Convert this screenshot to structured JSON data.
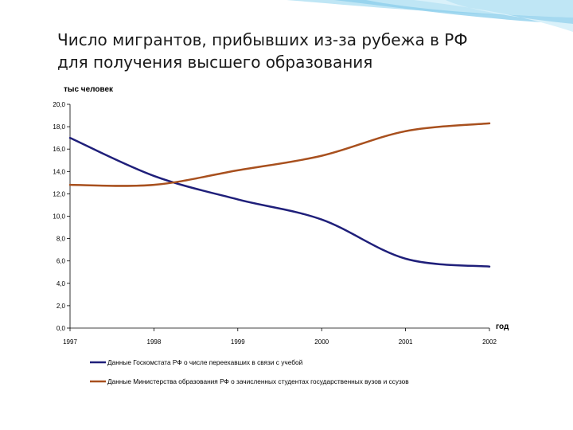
{
  "slide": {
    "title_line1": "Число мигрантов, прибывших из-за рубежа в РФ",
    "title_line2": "для получения высшего образования"
  },
  "chart_data": {
    "type": "line",
    "ylabel": "тыс человек",
    "xlabel": "год",
    "x": [
      "1997",
      "1998",
      "1999",
      "2000",
      "2001",
      "2002"
    ],
    "x_values": [
      1997,
      1998,
      1999,
      2000,
      2001,
      2002
    ],
    "ylim": [
      0,
      20
    ],
    "yticks": [
      "0,0",
      "2,0",
      "4,0",
      "6,0",
      "8,0",
      "10,0",
      "12,0",
      "14,0",
      "16,0",
      "18,0",
      "20,0"
    ],
    "grid": false,
    "legend_position": "bottom",
    "series": [
      {
        "name": "Данные Госкомстата РФ о числе переехавших в связи с учебой",
        "color": "#1f1f7a",
        "values": [
          17.0,
          13.6,
          11.5,
          9.7,
          6.2,
          5.5
        ]
      },
      {
        "name": "Данные Министерства образования РФ о зачисленных студентах государственных вузов и ссузов",
        "color": "#a8501e",
        "values": [
          12.8,
          12.8,
          14.1,
          15.4,
          17.6,
          18.3
        ]
      }
    ]
  }
}
